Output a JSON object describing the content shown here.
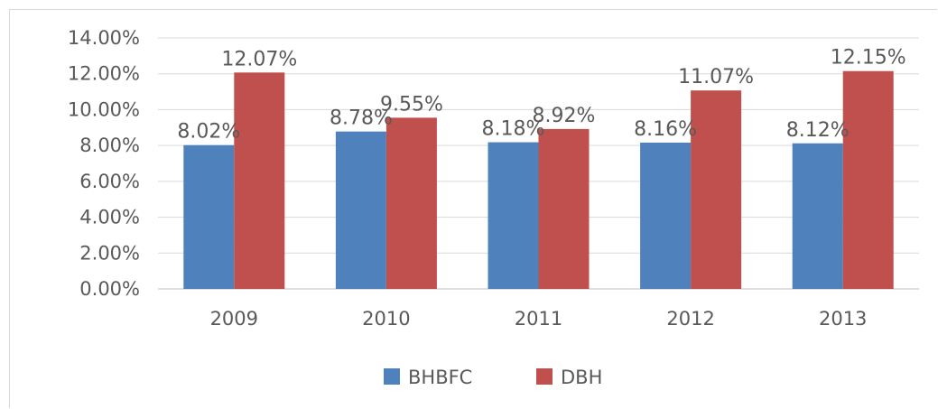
{
  "chart_data": {
    "type": "bar",
    "categories": [
      "2009",
      "2010",
      "2011",
      "2012",
      "2013"
    ],
    "series": [
      {
        "name": "BHBFC",
        "values": [
          8.02,
          8.78,
          8.18,
          8.16,
          8.12
        ],
        "labels": [
          "8.02%",
          "8.78%",
          "8.18%",
          "8.16%",
          "8.12%"
        ],
        "color": "#4f81bd"
      },
      {
        "name": "DBH",
        "values": [
          12.07,
          9.55,
          8.92,
          11.07,
          12.15
        ],
        "labels": [
          "12.07%",
          "9.55%",
          "8.92%",
          "11.07%",
          "12.15%"
        ],
        "color": "#c0504d"
      }
    ],
    "ylim": [
      0,
      14
    ],
    "yticks": [
      "0.00%",
      "2.00%",
      "4.00%",
      "6.00%",
      "8.00%",
      "10.00%",
      "12.00%",
      "14.00%"
    ],
    "ytick_values": [
      0,
      2,
      4,
      6,
      8,
      10,
      12,
      14
    ],
    "grid": true,
    "legend": "bottom-center",
    "title": "",
    "xlabel": "",
    "ylabel": ""
  }
}
